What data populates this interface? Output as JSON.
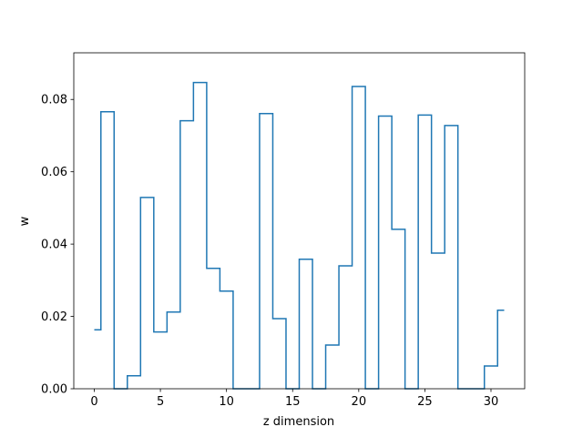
{
  "chart_data": {
    "type": "line",
    "drawstyle": "steps-mid",
    "title": "",
    "xlabel": "z dimension",
    "ylabel": "w",
    "xlim": [
      -1.55,
      32.55
    ],
    "ylim": [
      0,
      0.0929
    ],
    "xticks": [
      0,
      5,
      10,
      15,
      20,
      25,
      30
    ],
    "xtick_labels": [
      "0",
      "5",
      "10",
      "15",
      "20",
      "25",
      "30"
    ],
    "yticks": [
      0,
      0.02,
      0.04,
      0.06,
      0.08
    ],
    "ytick_labels": [
      "0.00",
      "0.02",
      "0.04",
      "0.06",
      "0.08"
    ],
    "grid": false,
    "series": [
      {
        "color": "#1f77b4",
        "x": [
          0,
          1,
          2,
          3,
          4,
          5,
          6,
          7,
          8,
          9,
          10,
          11,
          12,
          13,
          14,
          15,
          16,
          17,
          18,
          19,
          20,
          21,
          22,
          23,
          24,
          25,
          26,
          27,
          28,
          29,
          30,
          31
        ],
        "y": [
          0.0163,
          0.0766,
          0.0,
          0.0036,
          0.0529,
          0.0157,
          0.0212,
          0.0741,
          0.0847,
          0.0333,
          0.027,
          0.0,
          0.0,
          0.0761,
          0.0194,
          0.0,
          0.0358,
          0.0,
          0.0121,
          0.034,
          0.0836,
          0.0,
          0.0754,
          0.0441,
          0.0,
          0.0757,
          0.0375,
          0.0728,
          0.0,
          0.0,
          0.0063,
          0.0217
        ]
      }
    ]
  }
}
